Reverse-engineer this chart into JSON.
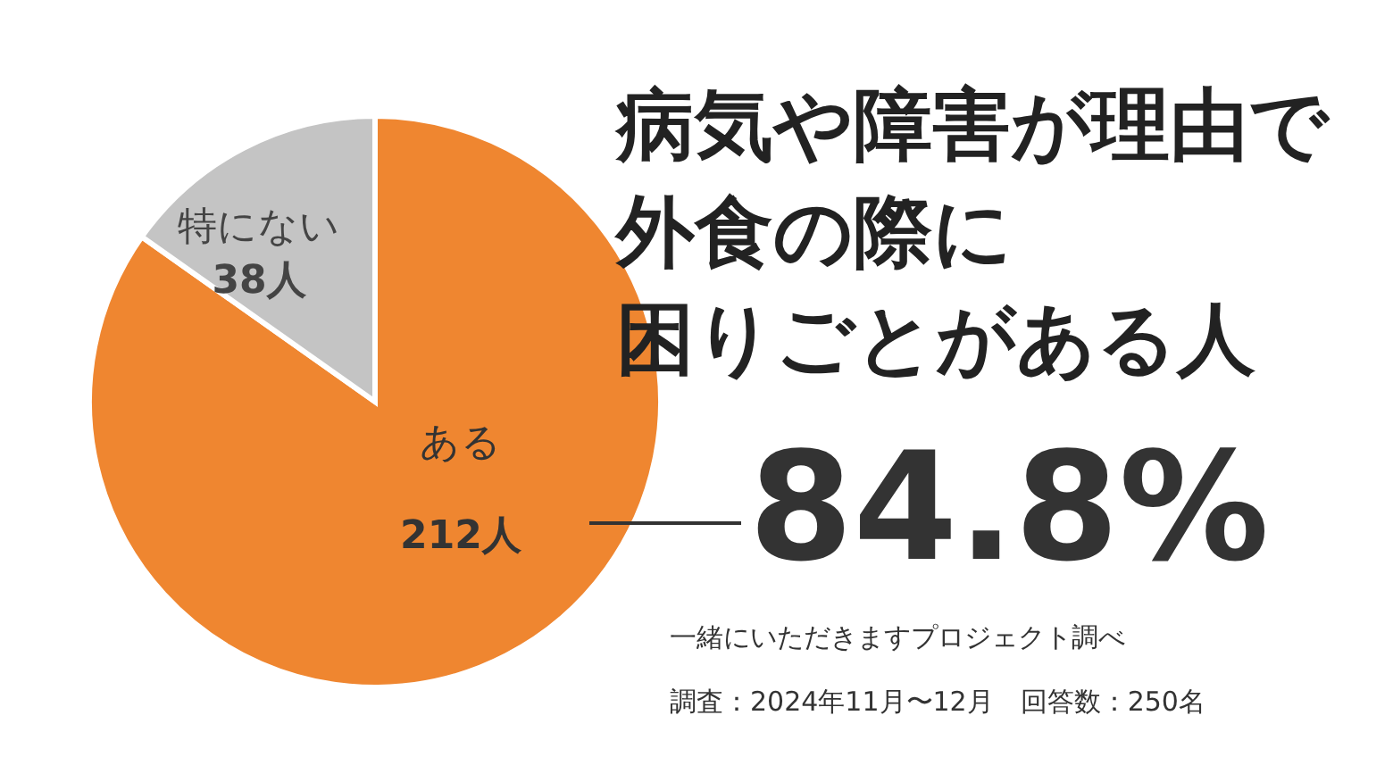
{
  "chart_data": {
    "type": "pie",
    "title": "病気や障害が理由で外食の際に困りごとがある人",
    "categories": [
      "ある",
      "特にない"
    ],
    "values": [
      212,
      38
    ],
    "value_labels": [
      "212人",
      "38人"
    ],
    "colors": [
      "#ef8630",
      "#c4c4c4"
    ],
    "annotations": [
      "84.8%",
      "一緒にいただきますプロジェクト調べ",
      "調査：2024年11月〜12月　回答数：250名"
    ]
  }
}
